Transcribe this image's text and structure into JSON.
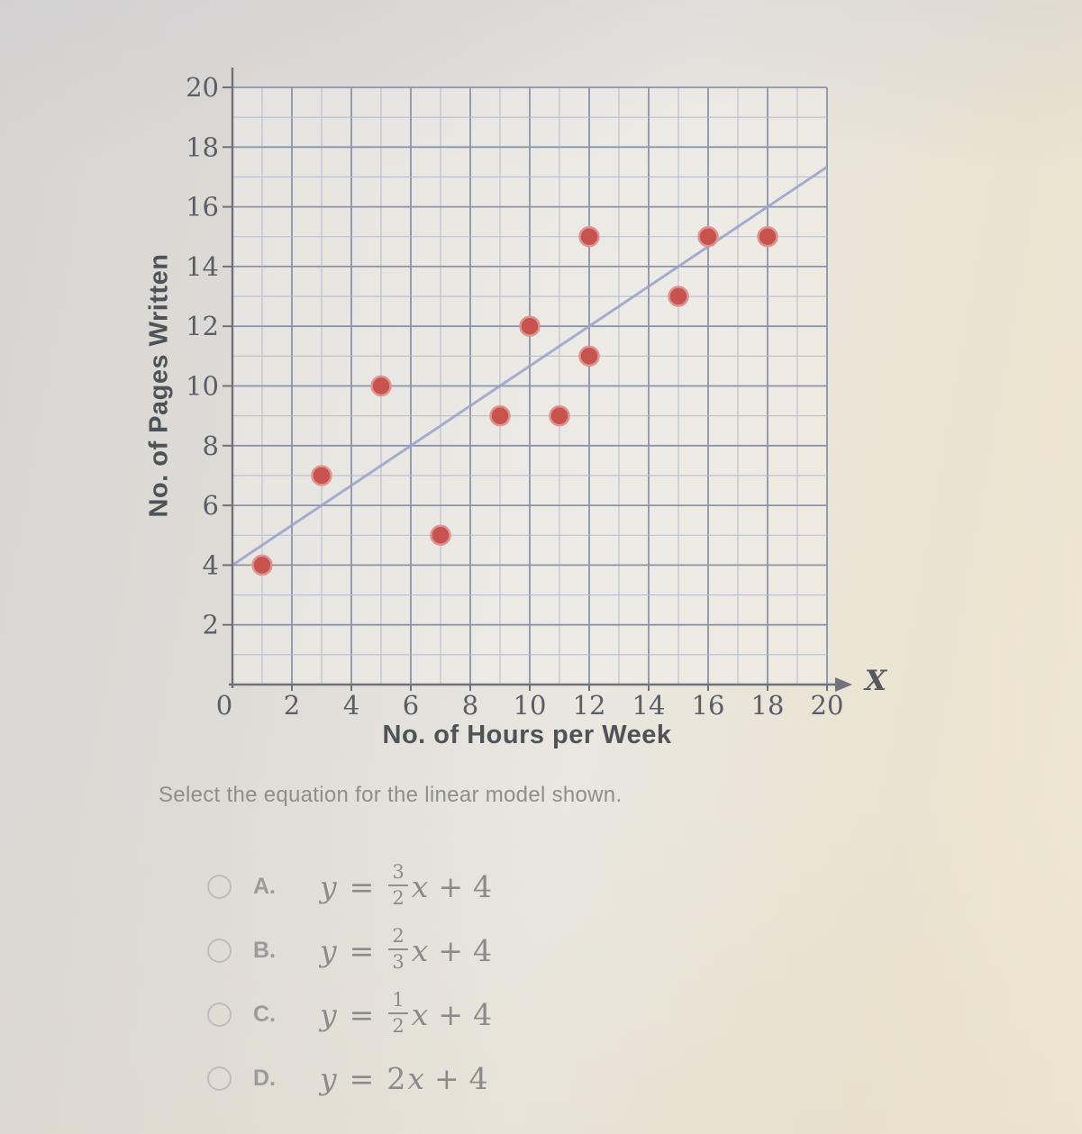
{
  "question": {
    "prompt": "Select the equation for the linear model shown."
  },
  "options": [
    {
      "key": "A.",
      "lhs": "y",
      "relation": "=",
      "fraction": true,
      "coef_num": "3",
      "coef_den": "2",
      "variable": "x",
      "operator": "+",
      "constant": "4",
      "selected": false
    },
    {
      "key": "B.",
      "lhs": "y",
      "relation": "=",
      "fraction": true,
      "coef_num": "2",
      "coef_den": "3",
      "variable": "x",
      "operator": "+",
      "constant": "4",
      "selected": false
    },
    {
      "key": "C.",
      "lhs": "y",
      "relation": "=",
      "fraction": true,
      "coef_num": "1",
      "coef_den": "2",
      "variable": "x",
      "operator": "+",
      "constant": "4",
      "selected": false
    },
    {
      "key": "D.",
      "lhs": "y",
      "relation": "=",
      "fraction": false,
      "coef": "2",
      "variable": "x",
      "operator": "+",
      "constant": "4",
      "selected": false
    }
  ],
  "chart_data": {
    "type": "scatter",
    "title": "",
    "xlabel": "No. of Hours per Week",
    "ylabel": "No. of Pages Written",
    "x_axis_symbol": "X",
    "xlim": [
      0,
      20
    ],
    "ylim": [
      0,
      20
    ],
    "xticks": [
      0,
      2,
      4,
      6,
      8,
      10,
      12,
      14,
      16,
      18,
      20
    ],
    "yticks": [
      2,
      4,
      6,
      8,
      10,
      12,
      14,
      16,
      18,
      20
    ],
    "grid": {
      "minor_step": 1,
      "major_step": 2,
      "grid_on": true
    },
    "points": [
      [
        1,
        4
      ],
      [
        3,
        7
      ],
      [
        5,
        10
      ],
      [
        7,
        5
      ],
      [
        9,
        9
      ],
      [
        10,
        12
      ],
      [
        11,
        9
      ],
      [
        12,
        11
      ],
      [
        12,
        15
      ],
      [
        15,
        13
      ],
      [
        16,
        15
      ],
      [
        18,
        15
      ]
    ],
    "trend_line": {
      "slope": 0.6667,
      "intercept": 4,
      "equation": "y = (2/3)x + 4",
      "x_range": [
        0,
        20
      ]
    },
    "colors": {
      "point": "#c8524e",
      "point_halo": "#e09490",
      "trend_line": "#9aa2cc",
      "grid_major": "#8d93ab",
      "grid_minor": "#b9bdd0",
      "axis": "#6f727b",
      "tick_text": "#5b5e66",
      "axis_label_text": "#4f5257"
    }
  }
}
